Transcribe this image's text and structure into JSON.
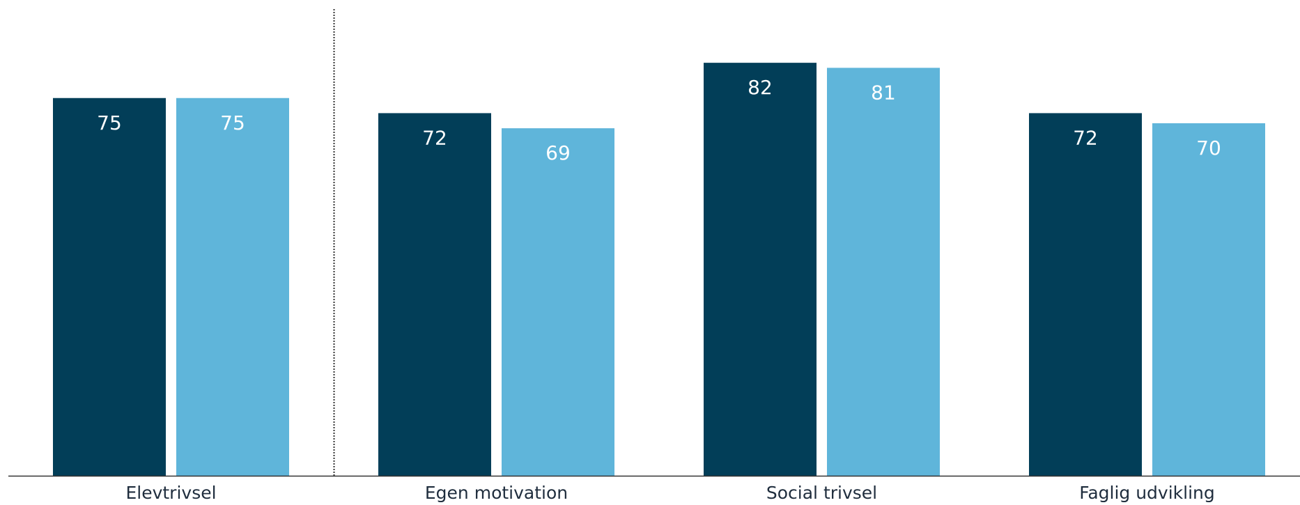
{
  "chart_data": {
    "type": "bar",
    "title": "",
    "xlabel": "",
    "ylabel": "",
    "ylim": [
      0,
      100
    ],
    "grid": false,
    "legend": "none",
    "categories": [
      "Elevtrivsel",
      "Egen motivation",
      "Social trivsel",
      "Faglig udvikling"
    ],
    "series": [
      {
        "color": "#023e58",
        "values": [
          75,
          72,
          82,
          72
        ]
      },
      {
        "color": "#5fb5da",
        "values": [
          75,
          69,
          81,
          70
        ]
      }
    ],
    "separator_after_category": 0
  },
  "colors": {
    "series_1": "#023e58",
    "series_2": "#5fb5da",
    "axis": "#333333",
    "separator": "#333333"
  }
}
